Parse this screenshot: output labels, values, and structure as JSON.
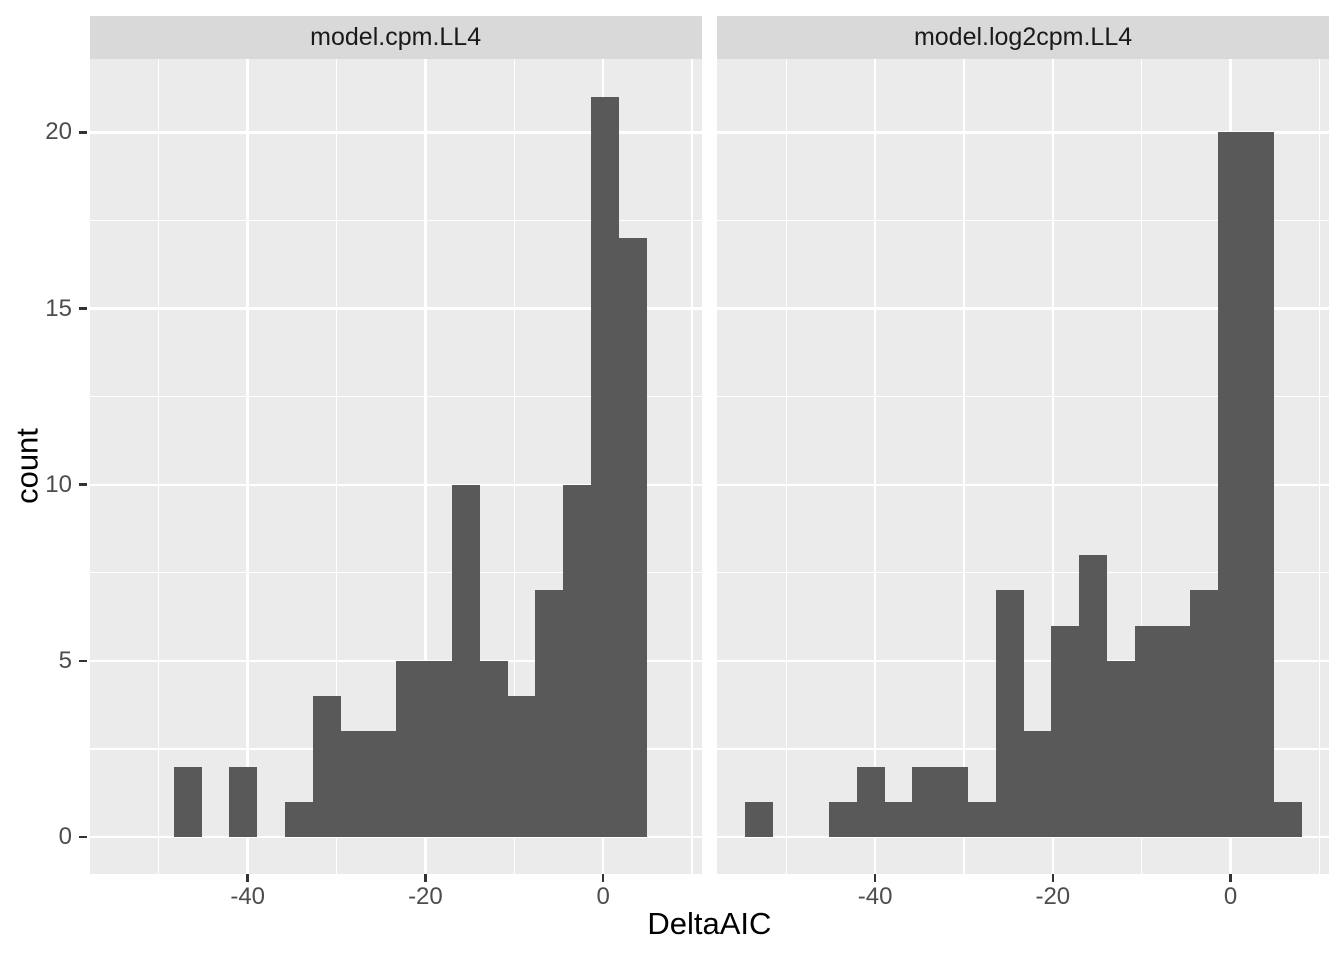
{
  "chart_data": {
    "type": "bar",
    "subtype": "faceted-histogram",
    "title": "",
    "xlabel": "DeltaAIC",
    "ylabel": "count",
    "bins": {
      "start": -54.6,
      "width": 3.13,
      "count": 20
    },
    "facets": [
      {
        "label": "model.cpm.LL4",
        "counts": [
          0,
          0,
          2,
          0,
          2,
          0,
          1,
          4,
          3,
          3,
          5,
          5,
          10,
          5,
          4,
          7,
          10,
          21,
          17,
          0
        ]
      },
      {
        "label": "model.log2cpm.LL4",
        "counts": [
          1,
          0,
          0,
          1,
          2,
          1,
          2,
          2,
          1,
          7,
          3,
          6,
          8,
          5,
          6,
          6,
          7,
          20,
          20,
          1
        ]
      }
    ],
    "x_axis": {
      "ticks": [
        -40,
        -20,
        0
      ],
      "minor_ticks": [
        -50,
        -30,
        -10,
        10
      ],
      "domain": [
        -57.8,
        11.1
      ]
    },
    "y_axis": {
      "ticks": [
        0,
        5,
        10,
        15,
        20
      ],
      "minor_ticks": [
        2.5,
        7.5,
        12.5,
        17.5
      ],
      "domain": [
        -1.05,
        22.1
      ]
    },
    "legend": "none",
    "grid": true
  },
  "colors": {
    "figure_background": "#ffffff",
    "panel_background": "#ebebeb",
    "strip_background": "#d9d9d9",
    "bar_fill": "#595959",
    "gridline": "#ffffff",
    "axis_text": "#4d4d4d",
    "strip_text": "#1a1a1a",
    "axis_title": "#000000",
    "tick_mark": "#333333"
  }
}
